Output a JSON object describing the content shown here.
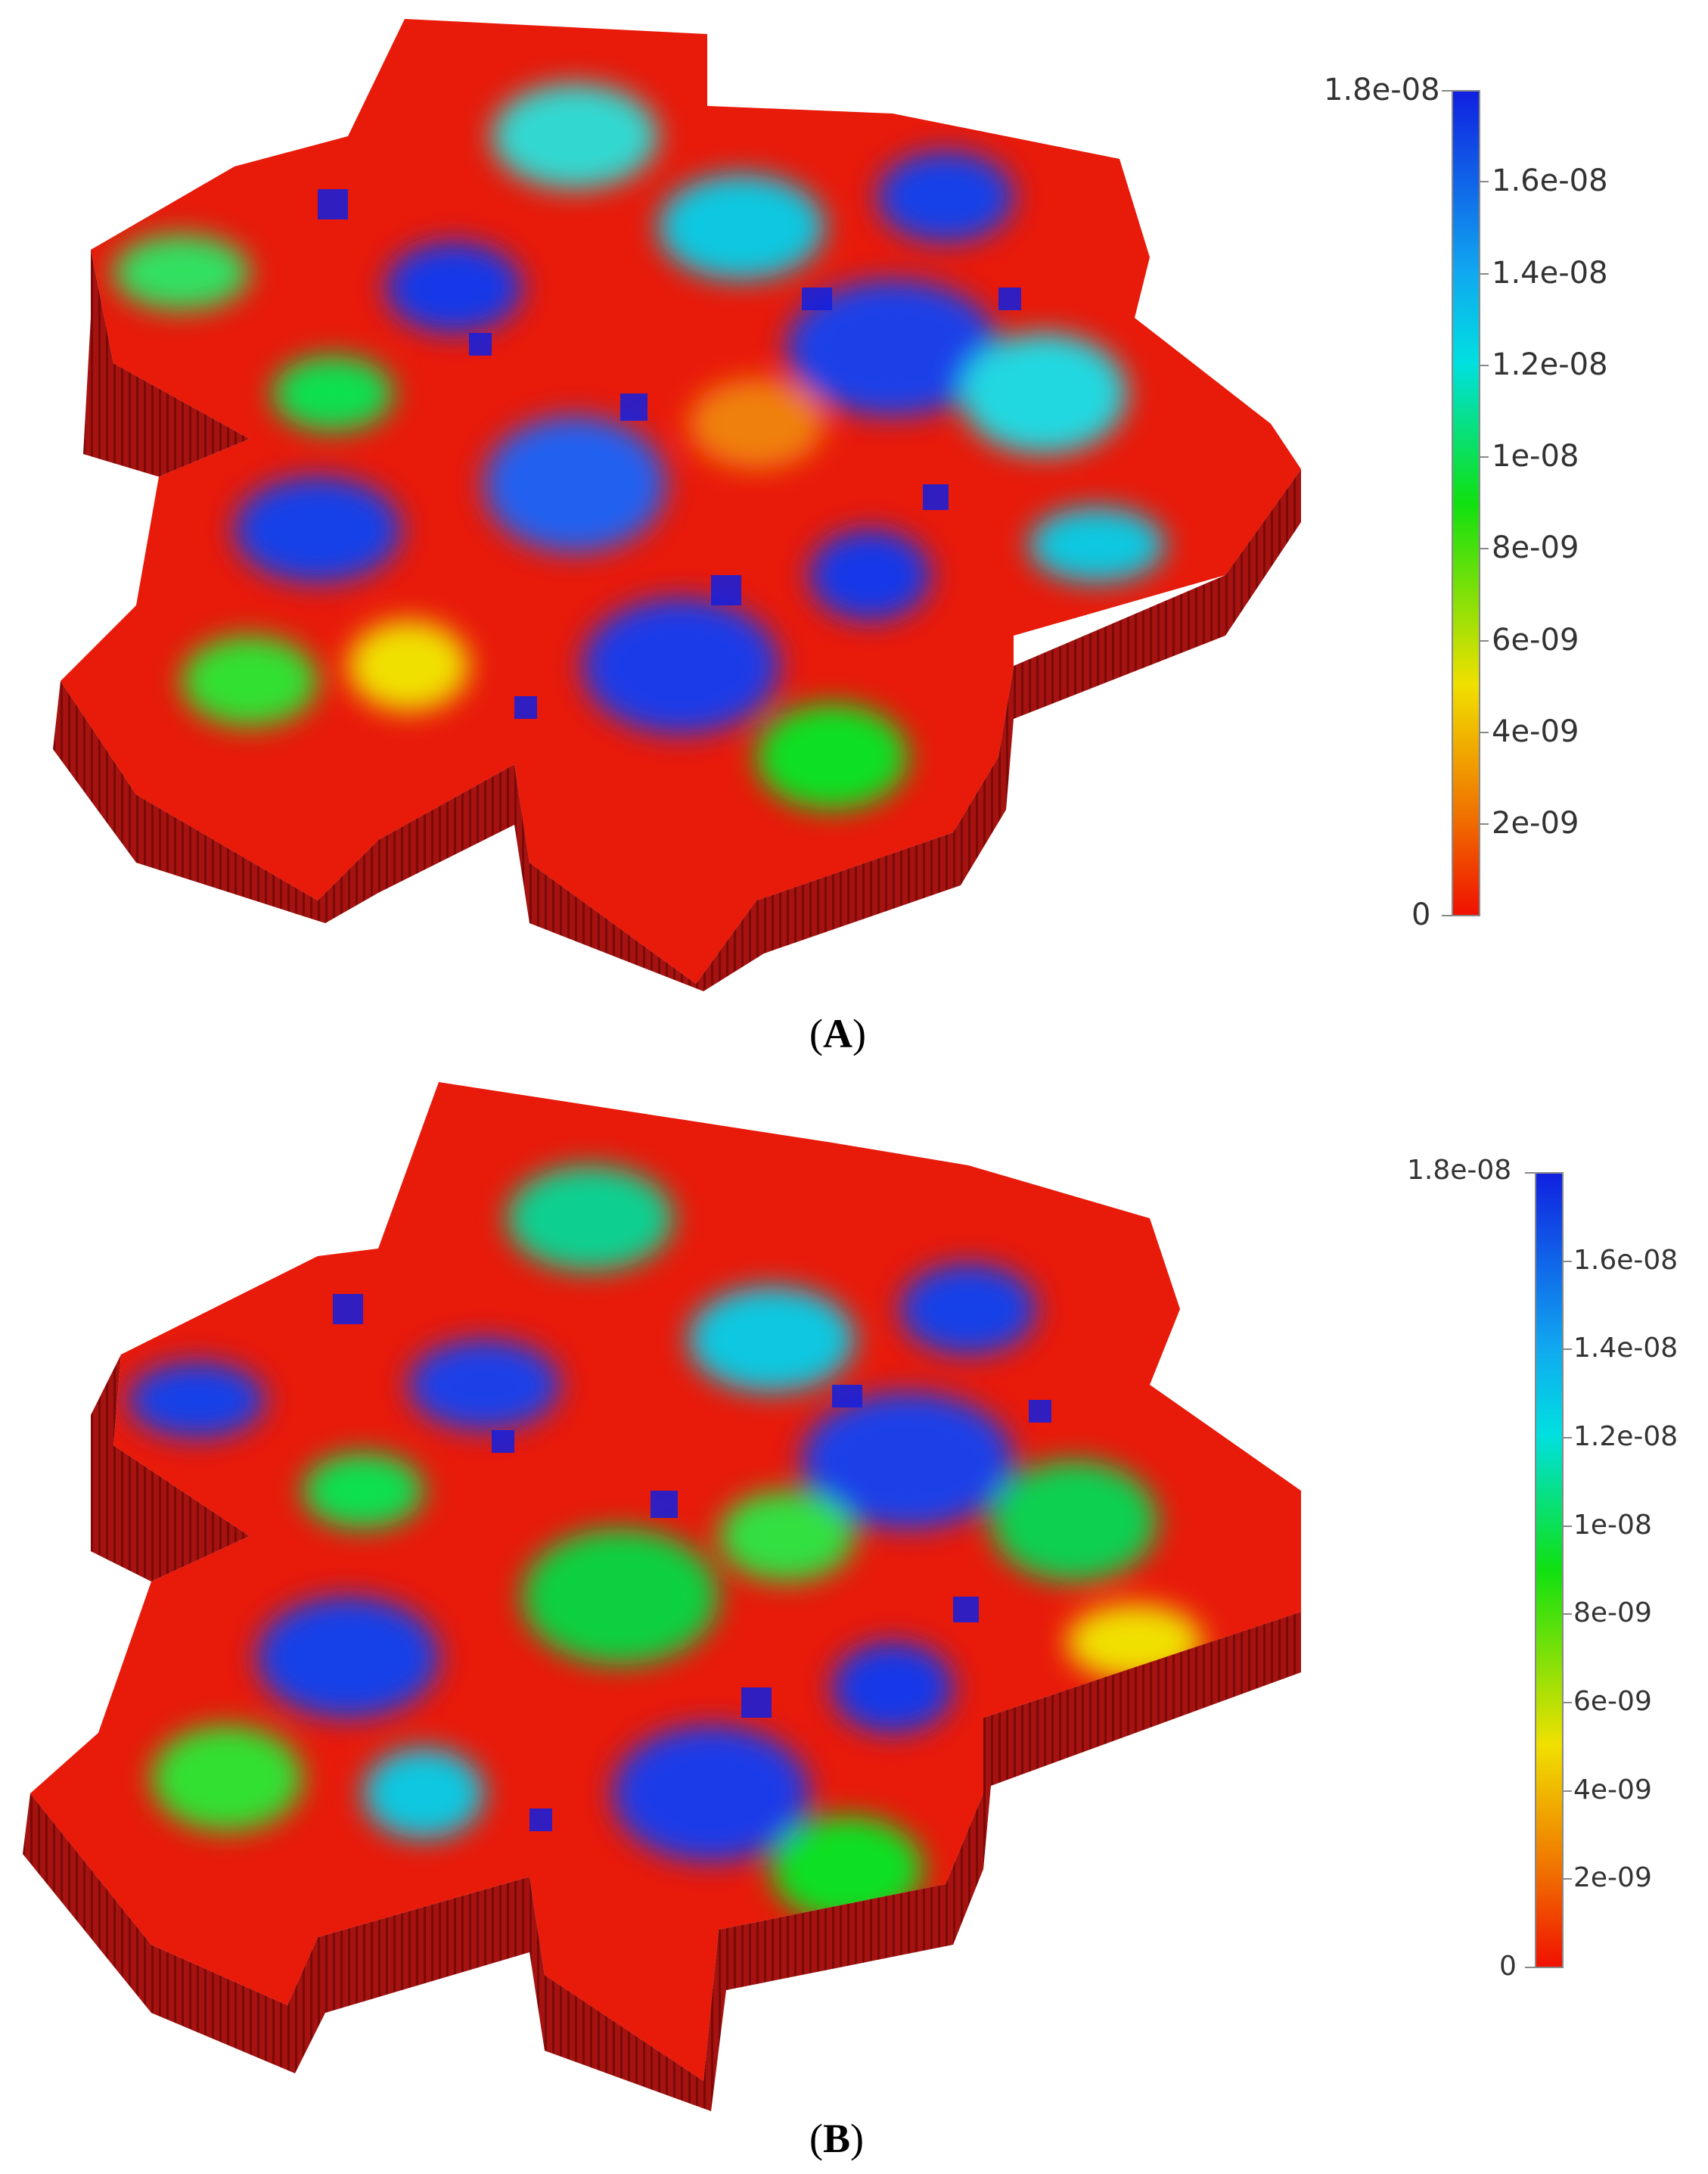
{
  "panels": [
    {
      "id": "A",
      "label_open": "(",
      "label_letter": "A",
      "label_close": ")",
      "colorbar": {
        "tick_labels": [
          "1.8e-08",
          "1.6e-08",
          "1.4e-08",
          "1.2e-08",
          "1e-08",
          "8e-09",
          "6e-09",
          "4e-09",
          "2e-09",
          "0"
        ]
      }
    },
    {
      "id": "B",
      "label_open": "(",
      "label_letter": "B",
      "label_close": ")",
      "colorbar": {
        "tick_labels": [
          "1.8e-08",
          "1.6e-08",
          "1.4e-08",
          "1.2e-08",
          "1e-08",
          "8e-09",
          "6e-09",
          "4e-09",
          "2e-09",
          "0"
        ]
      }
    }
  ],
  "colors": {
    "high": "#1020e0",
    "upper": "#00c8e8",
    "mid": "#10e010",
    "lower": "#f0e000",
    "low": "#f01000",
    "side_wall": "#a01010"
  }
}
